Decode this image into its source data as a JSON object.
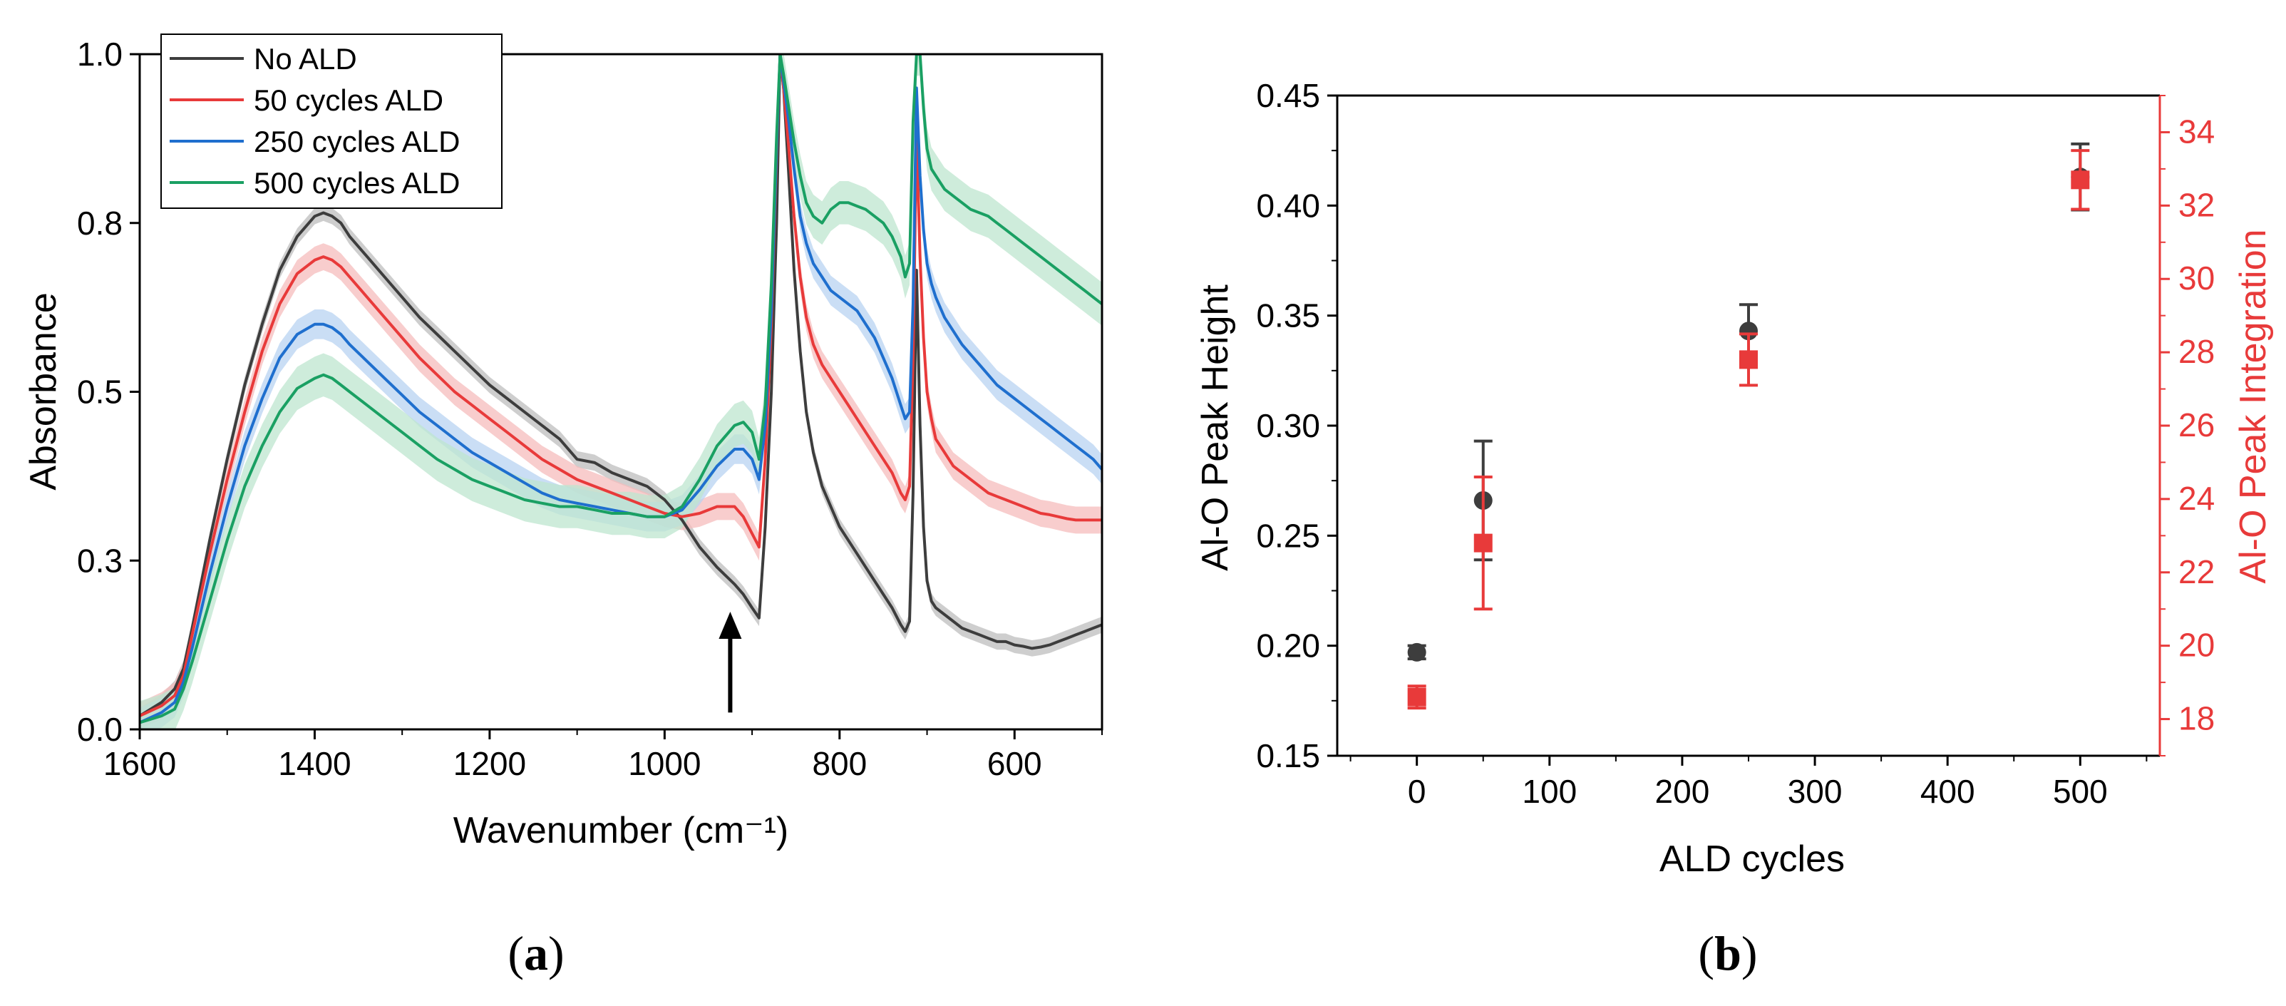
{
  "chart_data": [
    {
      "type": "line",
      "panel_label": {
        "open": "(",
        "letter": "a",
        "close": ")"
      },
      "xlabel": "Wavenumber (cm⁻¹)",
      "ylabel": "Absorbance",
      "xlim": [
        1600,
        500
      ],
      "ylim": [
        0,
        1.0
      ],
      "x_ticks": [
        1600,
        1400,
        1200,
        1000,
        800,
        600
      ],
      "x_tick_labels": [
        "1600",
        "1400",
        "1200",
        "1000",
        "800",
        "600"
      ],
      "y_ticks": [
        0.0,
        0.25,
        0.5,
        0.75,
        1.0
      ],
      "y_tick_labels": [
        "0.0",
        "0.3",
        "0.5",
        "0.8",
        "1.0"
      ],
      "legend_position": "top-left",
      "annotation": {
        "type": "arrow",
        "x": 925,
        "y_from": 0.025,
        "y_to": 0.17
      },
      "series": [
        {
          "name": "No ALD",
          "color": "#3d3d3d",
          "band": "#bdbdbd",
          "band_half": 0.012,
          "x": [
            1600,
            1575,
            1560,
            1550,
            1540,
            1520,
            1500,
            1480,
            1460,
            1440,
            1420,
            1400,
            1390,
            1380,
            1370,
            1360,
            1340,
            1320,
            1300,
            1280,
            1260,
            1240,
            1220,
            1200,
            1180,
            1160,
            1140,
            1120,
            1100,
            1080,
            1060,
            1040,
            1020,
            1000,
            980,
            960,
            940,
            920,
            910,
            900,
            892,
            885,
            878,
            872,
            868,
            864,
            858,
            852,
            845,
            838,
            830,
            820,
            810,
            800,
            790,
            780,
            770,
            760,
            750,
            740,
            730,
            725,
            720,
            716,
            712,
            708,
            704,
            700,
            695,
            690,
            680,
            670,
            660,
            650,
            640,
            630,
            620,
            610,
            600,
            590,
            580,
            570,
            560,
            550,
            540,
            530,
            520,
            510,
            500
          ],
          "y": [
            0.02,
            0.04,
            0.06,
            0.09,
            0.15,
            0.28,
            0.4,
            0.51,
            0.6,
            0.68,
            0.73,
            0.76,
            0.765,
            0.76,
            0.75,
            0.73,
            0.7,
            0.67,
            0.64,
            0.61,
            0.585,
            0.56,
            0.535,
            0.51,
            0.49,
            0.47,
            0.45,
            0.43,
            0.4,
            0.395,
            0.38,
            0.37,
            0.36,
            0.34,
            0.31,
            0.27,
            0.24,
            0.215,
            0.2,
            0.18,
            0.165,
            0.3,
            0.5,
            0.75,
            1.0,
            0.95,
            0.82,
            0.68,
            0.56,
            0.47,
            0.41,
            0.36,
            0.33,
            0.3,
            0.28,
            0.26,
            0.24,
            0.22,
            0.2,
            0.18,
            0.155,
            0.145,
            0.16,
            0.35,
            0.68,
            0.45,
            0.3,
            0.22,
            0.19,
            0.18,
            0.17,
            0.16,
            0.15,
            0.145,
            0.14,
            0.135,
            0.13,
            0.13,
            0.125,
            0.123,
            0.12,
            0.122,
            0.125,
            0.13,
            0.135,
            0.14,
            0.145,
            0.15,
            0.155
          ]
        },
        {
          "name": "50 cycles ALD",
          "color": "#e83a3a",
          "band": "#f6bcbc",
          "band_half": 0.02,
          "x": [
            1600,
            1575,
            1560,
            1550,
            1540,
            1520,
            1500,
            1480,
            1460,
            1440,
            1420,
            1400,
            1390,
            1380,
            1370,
            1360,
            1340,
            1320,
            1300,
            1280,
            1260,
            1240,
            1220,
            1200,
            1180,
            1160,
            1140,
            1120,
            1100,
            1080,
            1060,
            1040,
            1020,
            1000,
            980,
            960,
            940,
            920,
            910,
            900,
            892,
            885,
            878,
            872,
            868,
            864,
            858,
            852,
            845,
            838,
            830,
            820,
            810,
            800,
            790,
            780,
            770,
            760,
            750,
            740,
            730,
            725,
            720,
            716,
            712,
            708,
            704,
            700,
            695,
            690,
            680,
            670,
            660,
            650,
            640,
            630,
            620,
            610,
            600,
            590,
            580,
            570,
            560,
            550,
            540,
            530,
            520,
            510,
            500
          ],
          "y": [
            0.02,
            0.035,
            0.05,
            0.08,
            0.14,
            0.26,
            0.37,
            0.47,
            0.56,
            0.63,
            0.675,
            0.695,
            0.7,
            0.695,
            0.685,
            0.67,
            0.64,
            0.61,
            0.58,
            0.55,
            0.525,
            0.5,
            0.48,
            0.46,
            0.44,
            0.42,
            0.4,
            0.385,
            0.37,
            0.36,
            0.35,
            0.34,
            0.33,
            0.32,
            0.315,
            0.32,
            0.33,
            0.33,
            0.315,
            0.29,
            0.27,
            0.4,
            0.6,
            0.85,
            1.0,
            0.95,
            0.86,
            0.76,
            0.67,
            0.61,
            0.57,
            0.54,
            0.52,
            0.5,
            0.48,
            0.46,
            0.44,
            0.42,
            0.4,
            0.38,
            0.35,
            0.34,
            0.36,
            0.55,
            0.88,
            0.7,
            0.58,
            0.5,
            0.46,
            0.43,
            0.41,
            0.39,
            0.38,
            0.37,
            0.36,
            0.35,
            0.345,
            0.34,
            0.335,
            0.33,
            0.325,
            0.32,
            0.318,
            0.315,
            0.312,
            0.31,
            0.31,
            0.31,
            0.31
          ]
        },
        {
          "name": "250 cycles ALD",
          "color": "#1f6fce",
          "band": "#b8d3f1",
          "band_half": 0.022,
          "x": [
            1600,
            1575,
            1560,
            1550,
            1540,
            1520,
            1500,
            1480,
            1460,
            1440,
            1420,
            1400,
            1390,
            1380,
            1370,
            1360,
            1340,
            1320,
            1300,
            1280,
            1260,
            1240,
            1220,
            1200,
            1180,
            1160,
            1140,
            1120,
            1100,
            1080,
            1060,
            1040,
            1020,
            1000,
            980,
            960,
            940,
            920,
            910,
            900,
            892,
            885,
            878,
            872,
            868,
            864,
            858,
            852,
            845,
            838,
            830,
            820,
            810,
            800,
            790,
            780,
            770,
            760,
            750,
            740,
            730,
            725,
            720,
            716,
            712,
            708,
            704,
            700,
            695,
            690,
            680,
            670,
            660,
            650,
            640,
            630,
            620,
            610,
            600,
            590,
            580,
            570,
            560,
            550,
            540,
            530,
            520,
            510,
            500
          ],
          "y": [
            0.01,
            0.025,
            0.04,
            0.07,
            0.12,
            0.23,
            0.33,
            0.42,
            0.49,
            0.55,
            0.585,
            0.6,
            0.6,
            0.595,
            0.585,
            0.57,
            0.545,
            0.52,
            0.495,
            0.47,
            0.45,
            0.43,
            0.41,
            0.395,
            0.38,
            0.365,
            0.35,
            0.34,
            0.335,
            0.33,
            0.325,
            0.32,
            0.315,
            0.315,
            0.325,
            0.355,
            0.39,
            0.415,
            0.415,
            0.4,
            0.37,
            0.45,
            0.62,
            0.86,
            1.0,
            0.96,
            0.9,
            0.83,
            0.76,
            0.72,
            0.69,
            0.67,
            0.65,
            0.64,
            0.63,
            0.62,
            0.6,
            0.58,
            0.55,
            0.52,
            0.48,
            0.46,
            0.47,
            0.63,
            0.95,
            0.82,
            0.74,
            0.69,
            0.66,
            0.64,
            0.61,
            0.59,
            0.57,
            0.555,
            0.54,
            0.525,
            0.51,
            0.5,
            0.49,
            0.48,
            0.47,
            0.46,
            0.45,
            0.44,
            0.43,
            0.42,
            0.41,
            0.4,
            0.385
          ]
        },
        {
          "name": "500 cycles ALD",
          "color": "#1aa063",
          "band": "#bde6cf",
          "band_half": 0.032,
          "x": [
            1600,
            1575,
            1560,
            1550,
            1540,
            1520,
            1500,
            1480,
            1460,
            1440,
            1420,
            1400,
            1390,
            1380,
            1370,
            1360,
            1340,
            1320,
            1300,
            1280,
            1260,
            1240,
            1220,
            1200,
            1180,
            1160,
            1140,
            1120,
            1100,
            1080,
            1060,
            1040,
            1020,
            1000,
            980,
            960,
            940,
            920,
            910,
            900,
            892,
            885,
            878,
            872,
            868,
            864,
            858,
            852,
            845,
            838,
            830,
            820,
            810,
            800,
            790,
            780,
            770,
            760,
            750,
            740,
            730,
            725,
            720,
            716,
            712,
            708,
            704,
            700,
            695,
            690,
            680,
            670,
            660,
            650,
            640,
            630,
            620,
            610,
            600,
            590,
            580,
            570,
            560,
            550,
            540,
            530,
            520,
            510,
            500
          ],
          "y": [
            0.01,
            0.02,
            0.03,
            0.06,
            0.1,
            0.19,
            0.28,
            0.36,
            0.42,
            0.47,
            0.505,
            0.52,
            0.525,
            0.52,
            0.51,
            0.5,
            0.48,
            0.46,
            0.44,
            0.42,
            0.4,
            0.385,
            0.37,
            0.36,
            0.35,
            0.34,
            0.335,
            0.33,
            0.33,
            0.325,
            0.32,
            0.32,
            0.315,
            0.315,
            0.33,
            0.37,
            0.42,
            0.45,
            0.455,
            0.44,
            0.4,
            0.48,
            0.66,
            0.88,
            1.0,
            0.97,
            0.92,
            0.87,
            0.82,
            0.78,
            0.76,
            0.75,
            0.77,
            0.78,
            0.78,
            0.775,
            0.77,
            0.76,
            0.75,
            0.73,
            0.7,
            0.67,
            0.69,
            0.9,
            1.0,
            1.0,
            0.92,
            0.86,
            0.83,
            0.82,
            0.8,
            0.79,
            0.78,
            0.77,
            0.765,
            0.76,
            0.75,
            0.74,
            0.73,
            0.72,
            0.71,
            0.7,
            0.69,
            0.68,
            0.67,
            0.66,
            0.65,
            0.64,
            0.63
          ]
        }
      ]
    },
    {
      "type": "scatter",
      "panel_label": {
        "open": "(",
        "letter": "b",
        "close": ")"
      },
      "xlabel": "ALD cycles",
      "ylabel": "Al-O Peak Height",
      "ylabel_right": "Al-O Peak Integration",
      "xlim": [
        -60,
        560
      ],
      "ylim": [
        0.15,
        0.45
      ],
      "ylim_right": [
        17,
        35
      ],
      "x_ticks": [
        0,
        100,
        200,
        300,
        400,
        500
      ],
      "x_tick_labels": [
        "0",
        "100",
        "200",
        "300",
        "400",
        "500"
      ],
      "y_ticks": [
        0.15,
        0.2,
        0.25,
        0.3,
        0.35,
        0.4,
        0.45
      ],
      "y_tick_labels": [
        "0.15",
        "0.20",
        "0.25",
        "0.30",
        "0.35",
        "0.40",
        "0.45"
      ],
      "y_right_ticks": [
        18,
        20,
        22,
        24,
        26,
        28,
        30,
        32,
        34
      ],
      "y_right_tick_labels": [
        "18",
        "20",
        "22",
        "24",
        "26",
        "28",
        "30",
        "32",
        "34"
      ],
      "left_axis_color": "#000000",
      "right_axis_color": "#e83a3a",
      "series": [
        {
          "name": "Al-O Peak Height",
          "axis": "left",
          "marker": "circle",
          "color": "#3d3d3d",
          "x": [
            0,
            50,
            250,
            500
          ],
          "y": [
            0.197,
            0.266,
            0.343,
            0.413
          ],
          "err": [
            0.003,
            0.027,
            0.012,
            0.015
          ]
        },
        {
          "name": "Al-O Peak Integration",
          "axis": "right",
          "marker": "square",
          "color": "#e83a3a",
          "x": [
            0,
            50,
            250,
            500
          ],
          "y": [
            18.6,
            22.8,
            27.8,
            32.7
          ],
          "err": [
            0.3,
            1.8,
            0.7,
            0.8
          ]
        }
      ]
    }
  ]
}
